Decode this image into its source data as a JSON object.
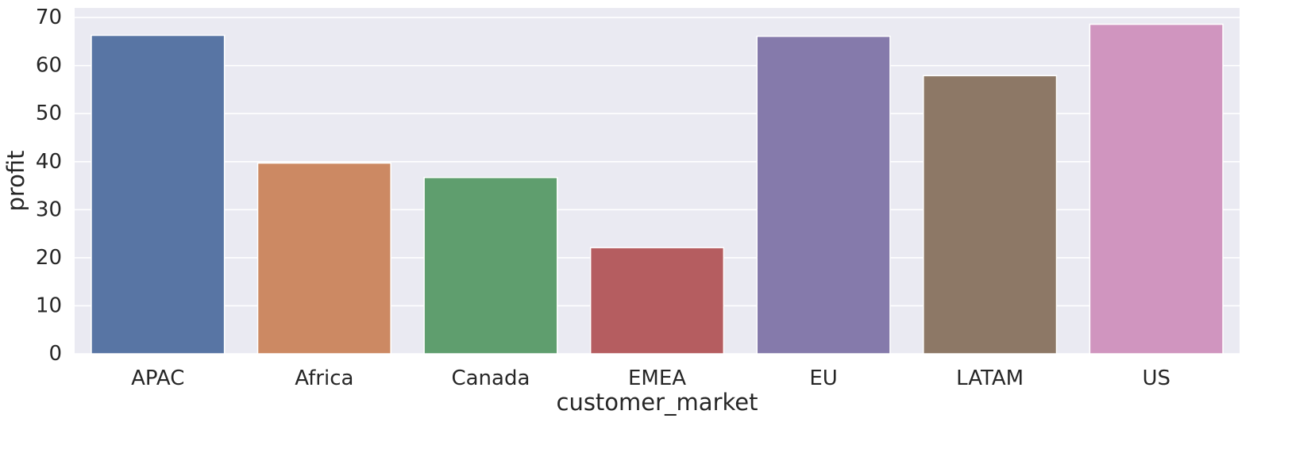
{
  "chart_data": {
    "type": "bar",
    "categories": [
      "APAC",
      "Africa",
      "Canada",
      "EMEA",
      "EU",
      "LATAM",
      "US"
    ],
    "values": [
      66.3,
      39.7,
      36.7,
      22.1,
      66.1,
      57.9,
      68.6
    ],
    "colors": [
      "#5875a4",
      "#cc8963",
      "#5f9e6e",
      "#b55d60",
      "#857aab",
      "#8d7866",
      "#d095bf"
    ],
    "xlabel": "customer_market",
    "ylabel": "profit",
    "ylim": [
      0,
      72
    ],
    "yticks": [
      0,
      10,
      20,
      30,
      40,
      50,
      60,
      70
    ],
    "grid": true,
    "background_color": "#eaeaf2",
    "grid_color": "#ffffff"
  }
}
